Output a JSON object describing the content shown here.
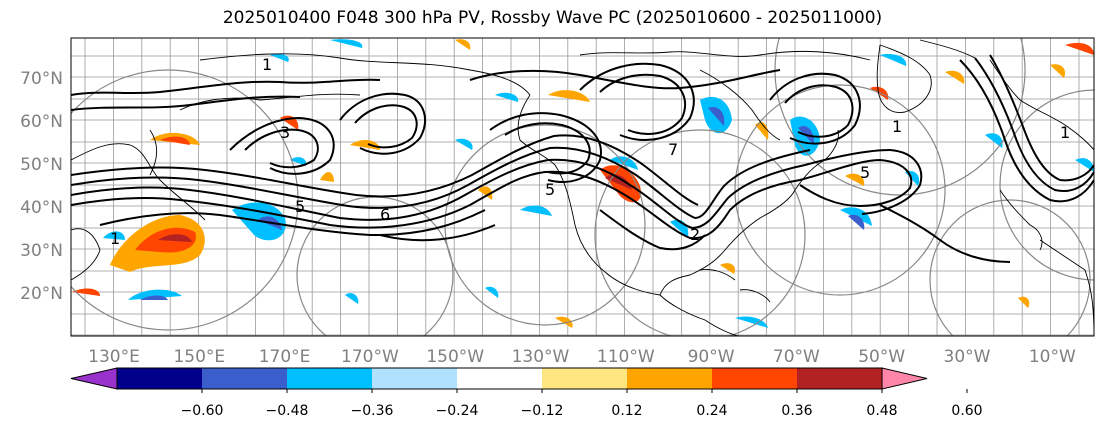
{
  "title": "2025010400 F048 300 hPa PV, Rossby Wave PC (2025010600 - 2025011000)",
  "lat_labels": [
    "70°N",
    "60°N",
    "50°N",
    "40°N",
    "30°N",
    "20°N"
  ],
  "lon_labels": [
    "130°E",
    "150°E",
    "170°E",
    "170°W",
    "150°W",
    "130°W",
    "110°W",
    "90°W",
    "70°W",
    "50°W",
    "30°W",
    "10°W"
  ],
  "colorbar": {
    "ticks": [
      "−0.60",
      "−0.48",
      "−0.36",
      "−0.24",
      "−0.12",
      "0.12",
      "0.24",
      "0.36",
      "0.48",
      "0.60"
    ],
    "colors": [
      "#9932cc",
      "#00008b",
      "#3a5fcd",
      "#00bfff",
      "#b0e2ff",
      "#ffffff",
      "#ffe680",
      "#ffa500",
      "#ff4500",
      "#b22222",
      "#ff86a8"
    ]
  },
  "contour_labels": [
    "1",
    "5",
    "6",
    "5",
    "3",
    "1",
    "2",
    "5",
    "1",
    "1",
    "7"
  ]
}
